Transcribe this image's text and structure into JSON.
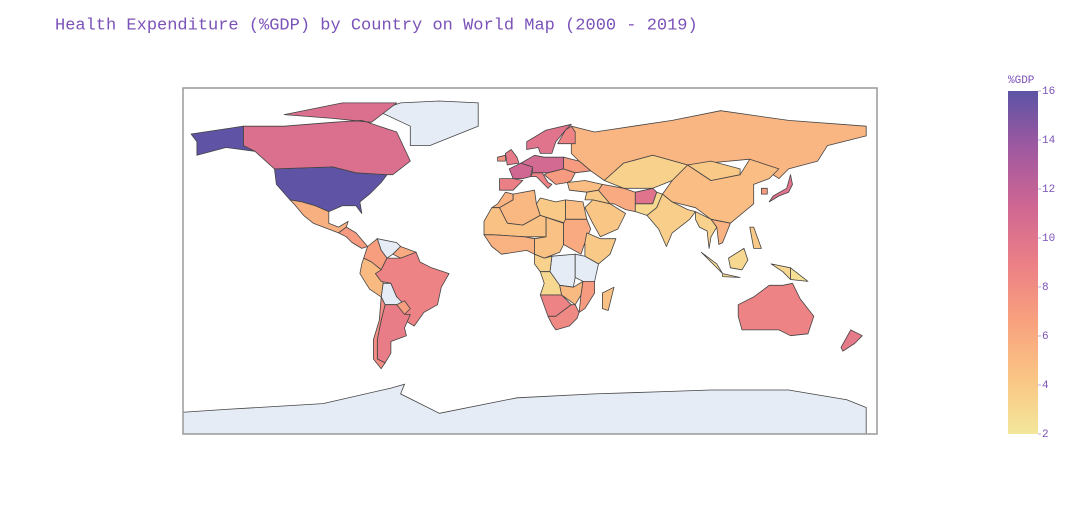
{
  "chart_data": {
    "type": "choropleth",
    "title": "Health Expenditure (%GDP) by Country on World Map (2000 - 2019)",
    "colorbar_title": "%GDP",
    "values": [
      15.9,
      10.4,
      5.6,
      7,
      6.8,
      6,
      5,
      8.7,
      6.8,
      9.2,
      8,
      5.3,
      10,
      8.7,
      9.5,
      7.5,
      11.2,
      9,
      11,
      8.8,
      7,
      7,
      4.8,
      4,
      4.2,
      6,
      3.5,
      10,
      3,
      3.7,
      4.8,
      4,
      3.5,
      5.5,
      7,
      10,
      3,
      2.5,
      4,
      8.7,
      9.5,
      5.5,
      5.2,
      4,
      4.8,
      4.5,
      5.5,
      4.5,
      6,
      4,
      3.5,
      3,
      5,
      7,
      4.5,
      8.7,
      8.3
    ],
    "colorscale": [
      "#f3e79b",
      "#fac484",
      "#f8a07e",
      "#eb7f86",
      "#ce6693",
      "#a059a0",
      "#5c53a5"
    ],
    "zlim": [
      2,
      16
    ],
    "zticks": [
      2,
      4,
      6,
      8,
      10,
      12,
      14,
      16
    ]
  }
}
